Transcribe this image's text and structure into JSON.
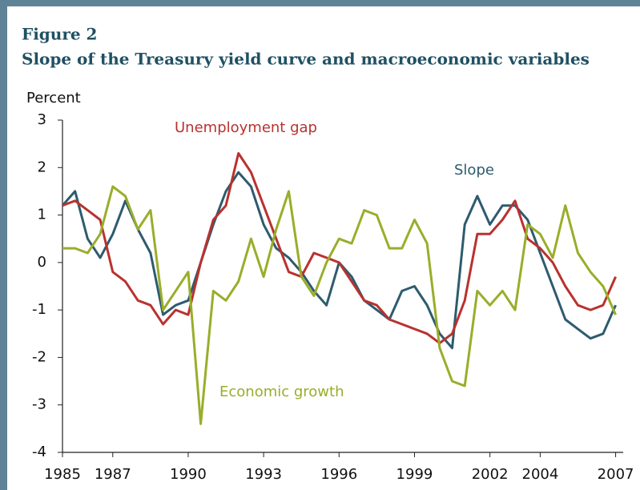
{
  "chart_data": {
    "type": "line",
    "figure_label": "Figure 2",
    "title": "Slope of the Treasury yield curve and macroeconomic variables",
    "y_label": "Percent",
    "x": [
      1985,
      1985.5,
      1986,
      1986.5,
      1987,
      1987.5,
      1988,
      1988.5,
      1989,
      1989.5,
      1990,
      1990.5,
      1991,
      1991.5,
      1992,
      1992.5,
      1993,
      1993.5,
      1994,
      1994.5,
      1995,
      1995.5,
      1996,
      1996.5,
      1997,
      1997.5,
      1998,
      1998.5,
      1999,
      1999.5,
      2000,
      2000.5,
      2001,
      2001.5,
      2002,
      2002.5,
      2003,
      2003.5,
      2004,
      2004.5,
      2005,
      2005.5,
      2006,
      2006.5,
      2007
    ],
    "series": [
      {
        "name": "Slope",
        "color": "#2e5b6e",
        "values": [
          1.2,
          1.5,
          0.5,
          0.1,
          0.6,
          1.3,
          0.7,
          0.2,
          -1.1,
          -0.9,
          -0.8,
          0.0,
          0.8,
          1.5,
          1.9,
          1.6,
          0.8,
          0.3,
          0.1,
          -0.2,
          -0.6,
          -0.9,
          0.0,
          -0.3,
          -0.8,
          -1.0,
          -1.2,
          -0.6,
          -0.5,
          -0.9,
          -1.5,
          -1.8,
          0.8,
          1.4,
          0.8,
          1.2,
          1.2,
          0.9,
          0.2,
          -0.5,
          -1.2,
          -1.4,
          -1.6,
          -1.5,
          -0.9
        ]
      },
      {
        "name": "Unemployment gap",
        "color": "#b8322f",
        "values": [
          1.2,
          1.3,
          1.1,
          0.9,
          -0.2,
          -0.4,
          -0.8,
          -0.9,
          -1.3,
          -1.0,
          -1.1,
          0.0,
          0.9,
          1.2,
          2.3,
          1.9,
          1.2,
          0.5,
          -0.2,
          -0.3,
          0.2,
          0.1,
          0.0,
          -0.4,
          -0.8,
          -0.9,
          -1.2,
          -1.3,
          -1.4,
          -1.5,
          -1.7,
          -1.5,
          -0.8,
          0.6,
          0.6,
          0.9,
          1.3,
          0.5,
          0.3,
          0.0,
          -0.5,
          -0.9,
          -1.0,
          -0.9,
          -0.3
        ]
      },
      {
        "name": "Economic growth",
        "color": "#9aad2a",
        "values": [
          0.3,
          0.3,
          0.2,
          0.6,
          1.6,
          1.4,
          0.7,
          1.1,
          -1.0,
          -0.6,
          -0.2,
          -3.4,
          -0.6,
          -0.8,
          -0.4,
          0.5,
          -0.3,
          0.7,
          1.5,
          -0.3,
          -0.7,
          0.0,
          0.5,
          0.4,
          1.1,
          1.0,
          0.3,
          0.3,
          0.9,
          0.4,
          -1.8,
          -2.5,
          -2.6,
          -0.6,
          -0.9,
          -0.6,
          -1.0,
          0.8,
          0.6,
          0.1,
          1.2,
          0.2,
          -0.2,
          -0.5,
          -1.1
        ]
      }
    ],
    "xlim": [
      1985,
      2007.3
    ],
    "xticks": [
      1985,
      1987,
      1990,
      1993,
      1996,
      1999,
      2002,
      2004,
      2007
    ],
    "ylim": [
      -4,
      3
    ],
    "yticks": [
      -4,
      -3,
      -2,
      -1,
      0,
      1,
      2,
      3
    ],
    "grid": false
  }
}
